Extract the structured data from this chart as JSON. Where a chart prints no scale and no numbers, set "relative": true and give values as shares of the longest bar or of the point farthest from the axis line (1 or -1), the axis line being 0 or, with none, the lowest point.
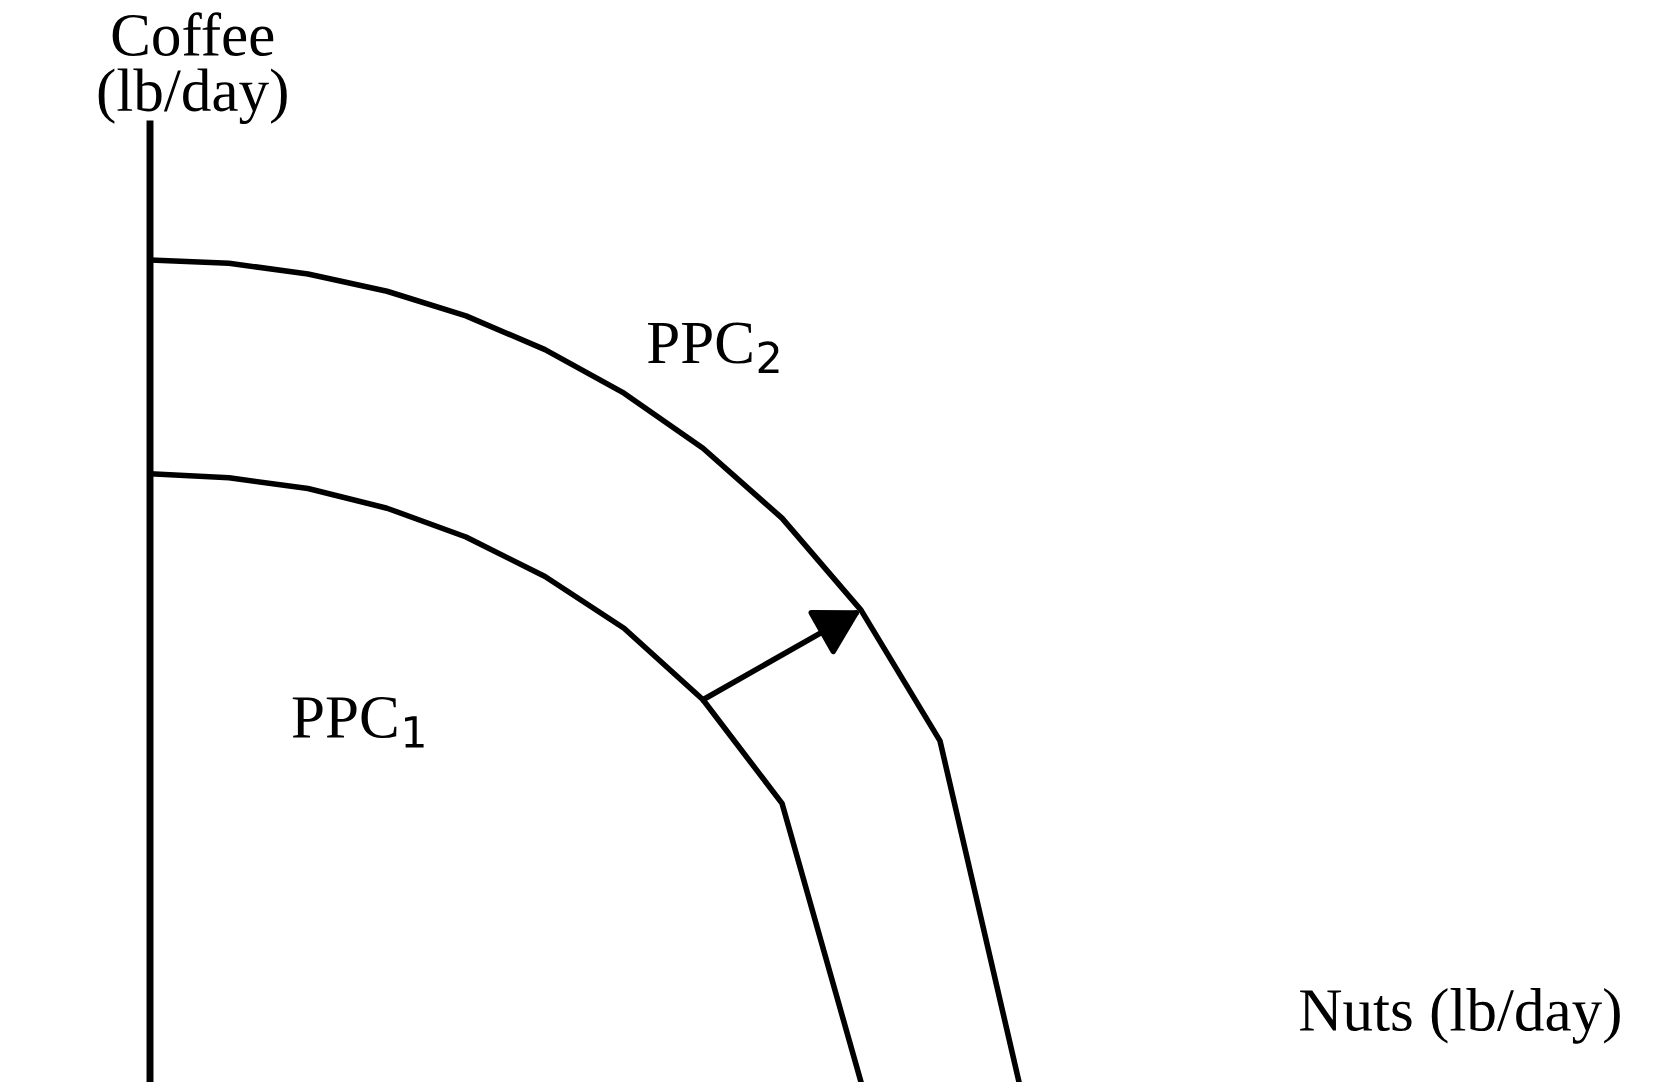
{
  "chart_data": {
    "type": "line",
    "relative": true,
    "xlabel": "Nuts (lb/day)",
    "ylabel": "Coffee\n(lb/day)",
    "marker": "none",
    "line_style": "solid",
    "categories": [
      null,
      null,
      null,
      null,
      null,
      null,
      null,
      null,
      null,
      null,
      null,
      null
    ],
    "series": [
      {
        "name": "PPC$_{1}$",
        "color": "#000000",
        "values": [
          0.74,
          0.735,
          0.722,
          0.698,
          0.663,
          0.615,
          0.552,
          0.465,
          0.339,
          0,
          null,
          null
        ]
      },
      {
        "name": "PPC$_{2}$",
        "color": "#000000",
        "values": [
          1,
          0.996,
          0.983,
          0.962,
          0.932,
          0.891,
          0.838,
          0.771,
          0.686,
          0.574,
          0.415,
          0
        ]
      }
    ]
  }
}
